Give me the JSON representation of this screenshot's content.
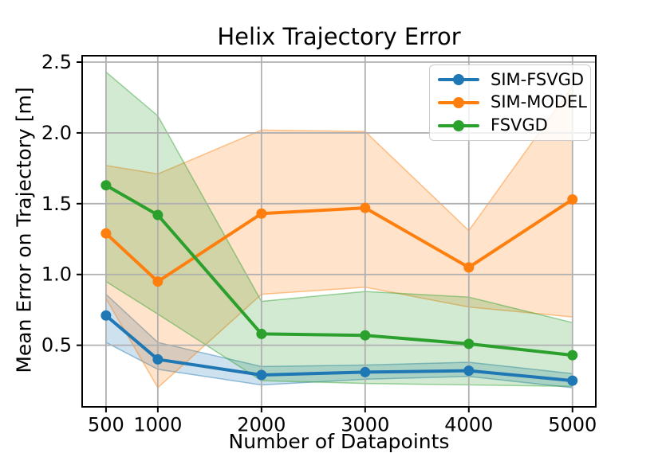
{
  "chart_data": {
    "type": "line",
    "title": "Helix Trajectory Error",
    "xlabel": "Number of Datapoints",
    "ylabel": "Mean Error on Trajectory [m]",
    "x": [
      500,
      1000,
      2000,
      3000,
      4000,
      5000
    ],
    "xticks": [
      500,
      1000,
      2000,
      3000,
      4000,
      5000
    ],
    "yticks": [
      0.5,
      1.0,
      1.5,
      2.0,
      2.5
    ],
    "xlim": [
      270,
      5225
    ],
    "ylim": [
      0.065,
      2.545
    ],
    "grid": true,
    "grid_color": "#b0b0b0",
    "frame_color": "#000000",
    "background_color": "#ffffff",
    "legend_position": "upper right",
    "series": [
      {
        "name": "SIM-FSVGD",
        "color": "#1f77b4",
        "values": [
          0.71,
          0.4,
          0.29,
          0.31,
          0.32,
          0.25
        ],
        "band_lower": [
          0.52,
          0.33,
          0.22,
          0.26,
          0.28,
          0.2
        ],
        "band_upper": [
          0.86,
          0.52,
          0.35,
          0.36,
          0.38,
          0.3
        ]
      },
      {
        "name": "SIM-MODEL",
        "color": "#ff7f0e",
        "values": [
          1.29,
          0.95,
          1.43,
          1.47,
          1.05,
          1.53
        ],
        "band_lower": [
          0.83,
          0.2,
          0.86,
          0.91,
          0.77,
          0.7
        ],
        "band_upper": [
          1.77,
          1.71,
          2.02,
          2.01,
          1.31,
          2.33
        ]
      },
      {
        "name": "FSVGD",
        "color": "#2ca02c",
        "values": [
          1.63,
          1.42,
          0.58,
          0.57,
          0.51,
          0.43
        ],
        "band_lower": [
          0.95,
          0.72,
          0.25,
          0.23,
          0.22,
          0.21
        ],
        "band_upper": [
          2.43,
          2.12,
          0.81,
          0.88,
          0.84,
          0.66
        ]
      }
    ]
  }
}
